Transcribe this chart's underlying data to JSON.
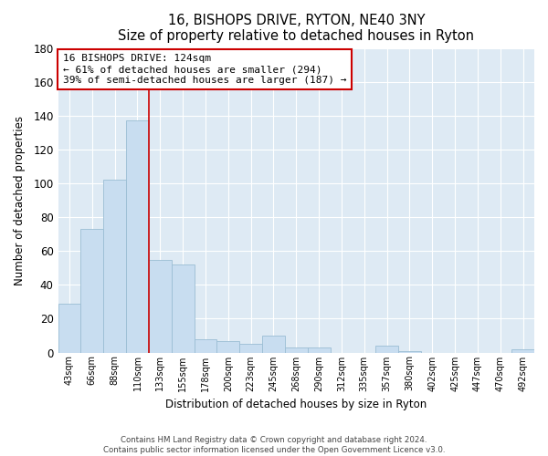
{
  "title": "16, BISHOPS DRIVE, RYTON, NE40 3NY",
  "subtitle": "Size of property relative to detached houses in Ryton",
  "xlabel": "Distribution of detached houses by size in Ryton",
  "ylabel": "Number of detached properties",
  "bar_color": "#c8ddf0",
  "bar_edge_color": "#9bbdd4",
  "bg_color": "#deeaf4",
  "categories": [
    "43sqm",
    "66sqm",
    "88sqm",
    "110sqm",
    "133sqm",
    "155sqm",
    "178sqm",
    "200sqm",
    "223sqm",
    "245sqm",
    "268sqm",
    "290sqm",
    "312sqm",
    "335sqm",
    "357sqm",
    "380sqm",
    "402sqm",
    "425sqm",
    "447sqm",
    "470sqm",
    "492sqm"
  ],
  "values": [
    29,
    73,
    102,
    137,
    55,
    52,
    8,
    7,
    5,
    10,
    3,
    3,
    0,
    0,
    4,
    1,
    0,
    0,
    0,
    0,
    2
  ],
  "ylim": [
    0,
    180
  ],
  "yticks": [
    0,
    20,
    40,
    60,
    80,
    100,
    120,
    140,
    160,
    180
  ],
  "annotation_title": "16 BISHOPS DRIVE: 124sqm",
  "annotation_line1": "← 61% of detached houses are smaller (294)",
  "annotation_line2": "39% of semi-detached houses are larger (187) →",
  "annotation_box_color": "#ffffff",
  "annotation_box_edge": "#cc0000",
  "vline_color": "#cc0000",
  "vline_x": 3.5,
  "footer_line1": "Contains HM Land Registry data © Crown copyright and database right 2024.",
  "footer_line2": "Contains public sector information licensed under the Open Government Licence v3.0.",
  "bar_width": 1.0
}
